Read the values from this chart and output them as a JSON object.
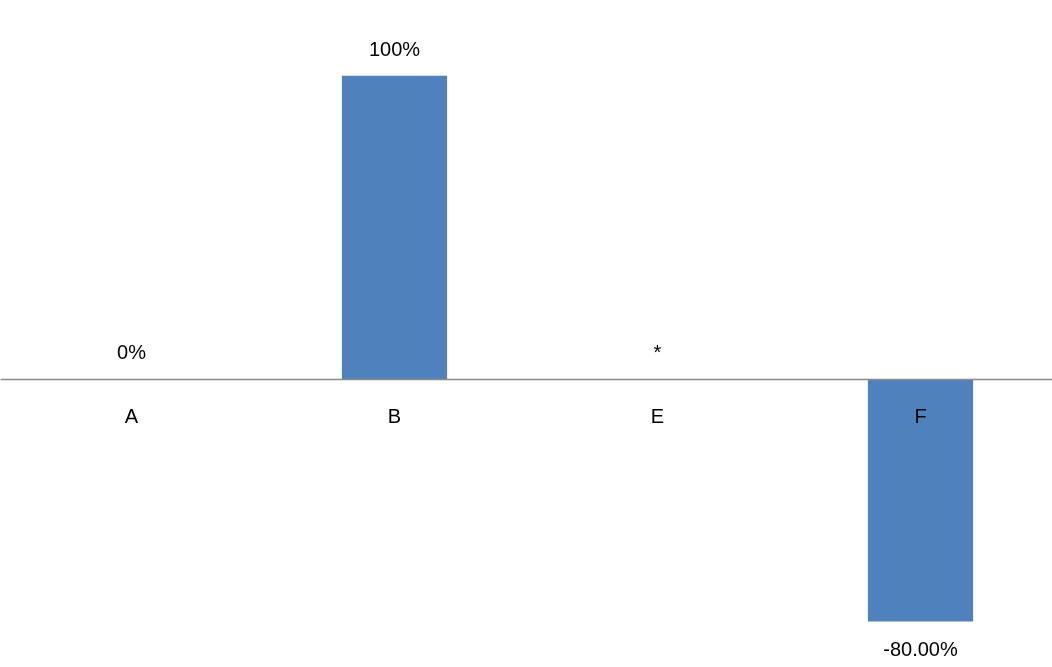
{
  "chart_data": {
    "type": "bar",
    "categories": [
      "A",
      "B",
      "E",
      "F"
    ],
    "values": [
      0,
      100,
      null,
      -80
    ],
    "value_labels": [
      "0%",
      "100%",
      "*",
      "-80.00%"
    ],
    "color": "#4f81bd",
    "ylim": [
      -95,
      125
    ]
  }
}
